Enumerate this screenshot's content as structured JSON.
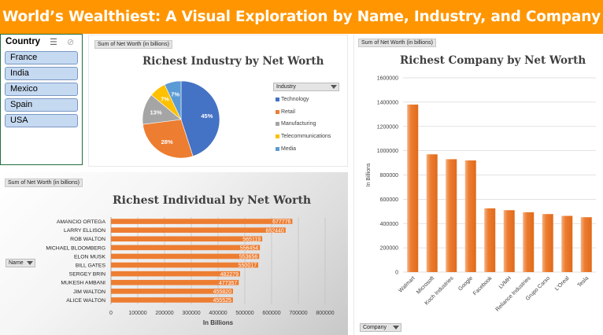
{
  "banner": {
    "title": "World’s Wealthiest: A Visual Exploration by Name, Industry, and Company"
  },
  "slicer": {
    "title": "Country",
    "items": [
      "France",
      "India",
      "Mexico",
      "Spain",
      "USA"
    ],
    "multi_select_icon": "multi-select-icon",
    "clear_filter_icon": "clear-filter-icon"
  },
  "colors": {
    "banner": "#ff9500",
    "bar_orange": "#ed7d31",
    "technology": "#4472c4",
    "retail": "#ed7d31",
    "manufacturing": "#a5a5a5",
    "telecommunications": "#ffc000",
    "media": "#5b9bd5",
    "slicer_item": "#c5d9f1"
  },
  "industry_panel": {
    "field_button": "Sum of Net Worth (in billions)",
    "legend_field": "Industry"
  },
  "individual_panel": {
    "field_button": "Sum of Net Worth (in billions)",
    "axis_field": "Name"
  },
  "company_panel": {
    "field_button": "Sum of Net Worth (in billions)",
    "axis_field": "Company"
  },
  "chart_data": [
    {
      "type": "pie",
      "title": "Richest Industry by Net Worth",
      "categories": [
        "Technology",
        "Retail",
        "Manufacturing",
        "Telecommunications",
        "Media"
      ],
      "values": [
        45,
        28,
        13,
        7,
        7
      ],
      "data_labels": [
        "45%",
        "28%",
        "13%",
        "7%",
        "7%"
      ],
      "legend": "right"
    },
    {
      "type": "bar",
      "orientation": "horizontal",
      "title": "Richest Individual by Net Worth",
      "categories": [
        "AMANCIO ORTEGA",
        "LARRY ELLISON",
        "ROB WALTON",
        "MICHAEL BLOOMBERG",
        "ELON MUSK",
        "BILL GATES",
        "SERGEY BRIN",
        "MUKESH AMBANI",
        "JIM WALTON",
        "ALICE WALTON"
      ],
      "values": [
        677776,
        652440,
        565119,
        556454,
        553656,
        550017,
        482279,
        477357,
        455820,
        455525
      ],
      "xlabel": "In Billions",
      "xlim": [
        0,
        800000
      ],
      "xticks": [
        "0",
        "100000",
        "200000",
        "300000",
        "400000",
        "500000",
        "600000",
        "700000",
        "800000"
      ],
      "grid": true
    },
    {
      "type": "bar",
      "title": "Richest Company by Net Worth",
      "categories": [
        "Walmart",
        "Microsoft",
        "Koch Industries",
        "Google",
        "Facebook",
        "LVMH",
        "Reliance Industries",
        "Grupo Carso",
        "L'Oreal",
        "Tesla"
      ],
      "values": [
        1380000,
        970000,
        930000,
        920000,
        525000,
        510000,
        493000,
        478000,
        463000,
        452000
      ],
      "ylabel": "In Billions",
      "ylim": [
        0,
        1600000
      ],
      "yticks": [
        "0",
        "200000",
        "400000",
        "600000",
        "800000",
        "1000000",
        "1200000",
        "1400000",
        "1600000"
      ],
      "grid": true
    }
  ]
}
